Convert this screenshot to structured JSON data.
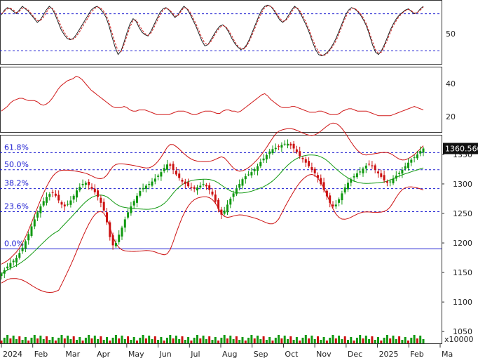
{
  "chart_data": [
    {
      "panel": "stochastic",
      "type": "line",
      "ytick_labels": [
        "50"
      ],
      "ylim": [
        0,
        100
      ],
      "reference_lines": [
        80,
        20
      ],
      "series": [
        {
          "values": [
            78,
            86,
            90,
            88,
            84,
            80,
            86,
            92,
            88,
            84,
            78,
            72,
            66,
            70,
            78,
            86,
            92,
            88,
            78,
            66,
            54,
            46,
            40,
            38,
            40,
            46,
            54,
            62,
            70,
            78,
            86,
            90,
            92,
            88,
            82,
            74,
            60,
            42,
            26,
            14,
            20,
            34,
            50,
            64,
            72,
            68,
            58,
            50,
            46,
            44,
            52,
            62,
            72,
            82,
            88,
            90,
            86,
            80,
            74,
            78,
            86,
            92,
            88,
            80,
            70,
            60,
            48,
            36,
            28,
            30,
            38,
            46,
            54,
            60,
            62,
            58,
            50,
            40,
            32,
            26,
            22,
            24,
            30,
            40,
            52,
            64,
            76,
            86,
            92,
            94,
            92,
            86,
            78,
            70,
            66,
            70,
            78,
            86,
            92,
            88,
            80,
            70,
            60,
            48,
            34,
            22,
            14,
            12,
            14,
            18,
            24,
            32,
            42,
            54,
            66,
            78,
            86,
            90,
            88,
            84,
            78,
            70,
            60,
            46,
            30,
            18,
            14,
            20,
            30,
            42,
            54,
            64,
            72,
            78,
            82,
            86,
            88,
            84,
            80,
            82,
            88,
            92
          ]
        },
        {
          "values": [
            80,
            84,
            88,
            89,
            86,
            82,
            84,
            89,
            89,
            86,
            80,
            74,
            69,
            69,
            74,
            82,
            89,
            89,
            82,
            71,
            59,
            50,
            43,
            39,
            39,
            43,
            50,
            58,
            66,
            74,
            82,
            88,
            91,
            90,
            85,
            78,
            66,
            49,
            33,
            20,
            19,
            30,
            45,
            59,
            69,
            70,
            62,
            54,
            48,
            45,
            49,
            58,
            68,
            78,
            86,
            89,
            87,
            82,
            76,
            77,
            84,
            90,
            89,
            83,
            74,
            64,
            53,
            41,
            32,
            30,
            35,
            43,
            51,
            58,
            61,
            59,
            53,
            44,
            35,
            28,
            24,
            23,
            28,
            37,
            48,
            60,
            72,
            82,
            90,
            93,
            92,
            88,
            80,
            73,
            68,
            69,
            75,
            83,
            90,
            89,
            83,
            74,
            64,
            52,
            39,
            27,
            18,
            13,
            13,
            16,
            22,
            29,
            38,
            50,
            62,
            74,
            83,
            89,
            89,
            85,
            80,
            73,
            63,
            50,
            35,
            22,
            16,
            18,
            27,
            38,
            50,
            61,
            69,
            76,
            81,
            85,
            87,
            85,
            81,
            82,
            86,
            91
          ]
        }
      ]
    },
    {
      "panel": "adx",
      "type": "line",
      "ytick_labels": [
        "40",
        "20"
      ],
      "ylim": [
        0,
        55
      ],
      "series": [
        {
          "values": [
            18,
            20,
            22,
            25,
            27,
            28,
            29,
            29,
            28,
            27,
            27,
            27,
            26,
            24,
            23,
            24,
            26,
            29,
            33,
            37,
            40,
            42,
            44,
            45,
            46,
            48,
            47,
            45,
            42,
            39,
            36,
            34,
            32,
            30,
            28,
            26,
            24,
            22,
            21,
            21,
            21,
            22,
            21,
            19,
            18,
            18,
            19,
            19,
            19,
            18,
            17,
            16,
            15,
            15,
            15,
            15,
            15,
            16,
            17,
            18,
            18,
            18,
            17,
            16,
            15,
            15,
            16,
            17,
            18,
            18,
            18,
            17,
            16,
            16,
            18,
            19,
            19,
            18,
            18,
            17,
            18,
            20,
            22,
            24,
            26,
            28,
            30,
            32,
            33,
            31,
            28,
            26,
            24,
            22,
            21,
            21,
            21,
            22,
            22,
            21,
            20,
            19,
            18,
            17,
            17,
            17,
            18,
            18,
            17,
            16,
            15,
            15,
            15,
            16,
            18,
            19,
            20,
            20,
            19,
            18,
            18,
            18,
            18,
            17,
            16,
            15,
            14,
            14,
            14,
            14,
            14,
            15,
            16,
            17,
            18,
            19,
            20,
            21,
            22,
            21,
            20,
            19
          ]
        }
      ]
    },
    {
      "panel": "price",
      "type": "candlestick",
      "ytick_labels": [
        "1350",
        "1300",
        "1250",
        "1200",
        "1150",
        "1100",
        "1050"
      ],
      "ylim": [
        1030,
        1382
      ],
      "last_price_label": "1360.560",
      "fib_levels": [
        {
          "label": "61.8%",
          "value": 1353
        },
        {
          "label": "50.0%",
          "value": 1324
        },
        {
          "label": "38.2%",
          "value": 1292
        },
        {
          "label": "23.6%",
          "value": 1253
        },
        {
          "label": "0.0%",
          "value": 1190
        }
      ],
      "closes": [
        1148,
        1154,
        1160,
        1166,
        1170,
        1175,
        1183,
        1192,
        1203,
        1215,
        1228,
        1240,
        1252,
        1262,
        1271,
        1278,
        1283,
        1285,
        1280,
        1272,
        1265,
        1262,
        1266,
        1272,
        1280,
        1289,
        1295,
        1300,
        1302,
        1298,
        1292,
        1286,
        1278,
        1268,
        1255,
        1235,
        1210,
        1196,
        1200,
        1214,
        1226,
        1240,
        1252,
        1262,
        1271,
        1280,
        1288,
        1293,
        1297,
        1300,
        1304,
        1309,
        1314,
        1320,
        1327,
        1333,
        1331,
        1324,
        1316,
        1310,
        1304,
        1300,
        1296,
        1293,
        1292,
        1294,
        1297,
        1300,
        1296,
        1290,
        1282,
        1270,
        1258,
        1248,
        1255,
        1265,
        1275,
        1284,
        1292,
        1300,
        1308,
        1313,
        1316,
        1320,
        1325,
        1330,
        1337,
        1343,
        1349,
        1355,
        1359,
        1361,
        1363,
        1366,
        1368,
        1368,
        1365,
        1360,
        1354,
        1347,
        1342,
        1336,
        1330,
        1324,
        1318,
        1310,
        1300,
        1290,
        1279,
        1268,
        1262,
        1265,
        1274,
        1284,
        1294,
        1302,
        1308,
        1313,
        1318,
        1321,
        1326,
        1331,
        1333,
        1330,
        1324,
        1318,
        1312,
        1306,
        1302,
        1304,
        1309,
        1314,
        1319,
        1324,
        1330,
        1336,
        1341,
        1345,
        1350,
        1356,
        1360
      ],
      "volume_axis_label": "x10000",
      "xtick_labels": [
        "2024",
        "Feb",
        "Mar",
        "Apr",
        "May",
        "Jun",
        "Jul",
        "Aug",
        "Sep",
        "Oct",
        "Nov",
        "Dec",
        "2025",
        "Feb",
        "Ma"
      ]
    }
  ]
}
